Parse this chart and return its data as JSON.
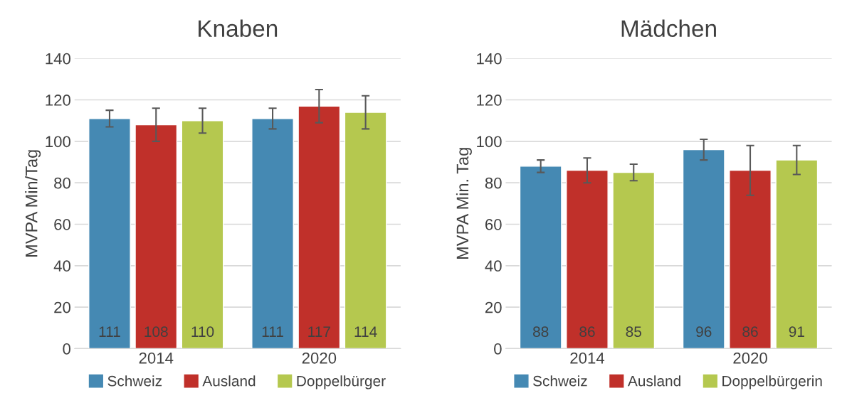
{
  "chart_data": [
    {
      "type": "bar",
      "title": "Knaben",
      "ylabel": "MVPA Min/Tag",
      "categories": [
        "2014",
        "2020"
      ],
      "series": [
        {
          "name": "Schweiz",
          "color": "#4589b3",
          "values": [
            111,
            111
          ],
          "errors": [
            4,
            5
          ]
        },
        {
          "name": "Ausland",
          "color": "#c0302a",
          "values": [
            108,
            117
          ],
          "errors": [
            8,
            8
          ]
        },
        {
          "name": "Doppelbürger",
          "color": "#b5c84f",
          "values": [
            110,
            114
          ],
          "errors": [
            6,
            8
          ]
        }
      ],
      "ylim": [
        0,
        140
      ],
      "yticks": [
        0,
        20,
        40,
        60,
        80,
        100,
        120,
        140
      ],
      "grid": "y",
      "legend": "bottom",
      "data_labels": true
    },
    {
      "type": "bar",
      "title": "Mädchen",
      "ylabel": "MVPA Min. Tag",
      "categories": [
        "2014",
        "2020"
      ],
      "series": [
        {
          "name": "Schweiz",
          "color": "#4589b3",
          "values": [
            88,
            96
          ],
          "errors": [
            3,
            5
          ]
        },
        {
          "name": "Ausland",
          "color": "#c0302a",
          "values": [
            86,
            86
          ],
          "errors": [
            6,
            12
          ]
        },
        {
          "name": "Doppelbürgerin",
          "color": "#b5c84f",
          "values": [
            85,
            91
          ],
          "errors": [
            4,
            7
          ]
        }
      ],
      "ylim": [
        0,
        140
      ],
      "yticks": [
        0,
        20,
        40,
        60,
        80,
        100,
        120,
        140
      ],
      "grid": "y",
      "legend": "bottom",
      "data_labels": true
    }
  ]
}
